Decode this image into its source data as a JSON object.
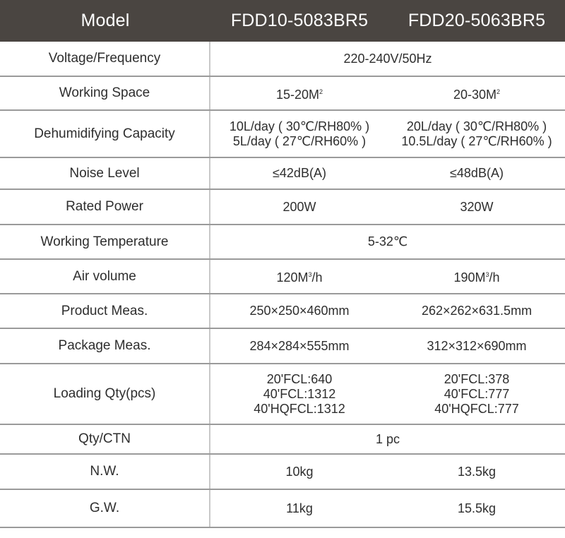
{
  "header": {
    "label": "Model",
    "models": [
      "FDD10-5083BR5",
      "FDD20-5063BR5"
    ]
  },
  "rows": [
    {
      "label": "Voltage/Frequency",
      "span": "220-240V/50Hz"
    },
    {
      "label": "Working Space",
      "m1": "15-20M",
      "m1_sup": "2",
      "m2": "20-30M",
      "m2_sup": "2"
    },
    {
      "label": "Dehumidifying Capacity",
      "m1_lines": [
        "10L/day ( 30℃/RH80% )",
        "5L/day ( 27℃/RH60% )"
      ],
      "m2_lines": [
        "20L/day ( 30℃/RH80% )",
        "10.5L/day ( 27℃/RH60% )"
      ]
    },
    {
      "label": "Noise Level",
      "m1": "≤42dB(A)",
      "m2": "≤48dB(A)"
    },
    {
      "label": "Rated Power",
      "m1": "200W",
      "m2": "320W"
    },
    {
      "label": "Working Temperature",
      "span": "5-32℃"
    },
    {
      "label": "Air volume",
      "m1_pre": "120M",
      "m1_sup": "3",
      "m1_post": "/h",
      "m2_pre": "190M",
      "m2_sup": "3",
      "m2_post": "/h"
    },
    {
      "label": "Product Meas.",
      "m1": "250×250×460mm",
      "m2": "262×262×631.5mm"
    },
    {
      "label": "Package Meas.",
      "m1": "284×284×555mm",
      "m2": "312×312×690mm"
    },
    {
      "label": "Loading Qty(pcs)",
      "m1_lines": [
        "20'FCL:640",
        "40'FCL:1312",
        "40'HQFCL:1312"
      ],
      "m2_lines": [
        "20'FCL:378",
        "40'FCL:777",
        "40'HQFCL:777"
      ]
    },
    {
      "label": "Qty/CTN",
      "span": "1 pc"
    },
    {
      "label": "N.W.",
      "m1": "10kg",
      "m2": "13.5kg"
    },
    {
      "label": "G.W.",
      "m1": "11kg",
      "m2": "15.5kg"
    }
  ]
}
